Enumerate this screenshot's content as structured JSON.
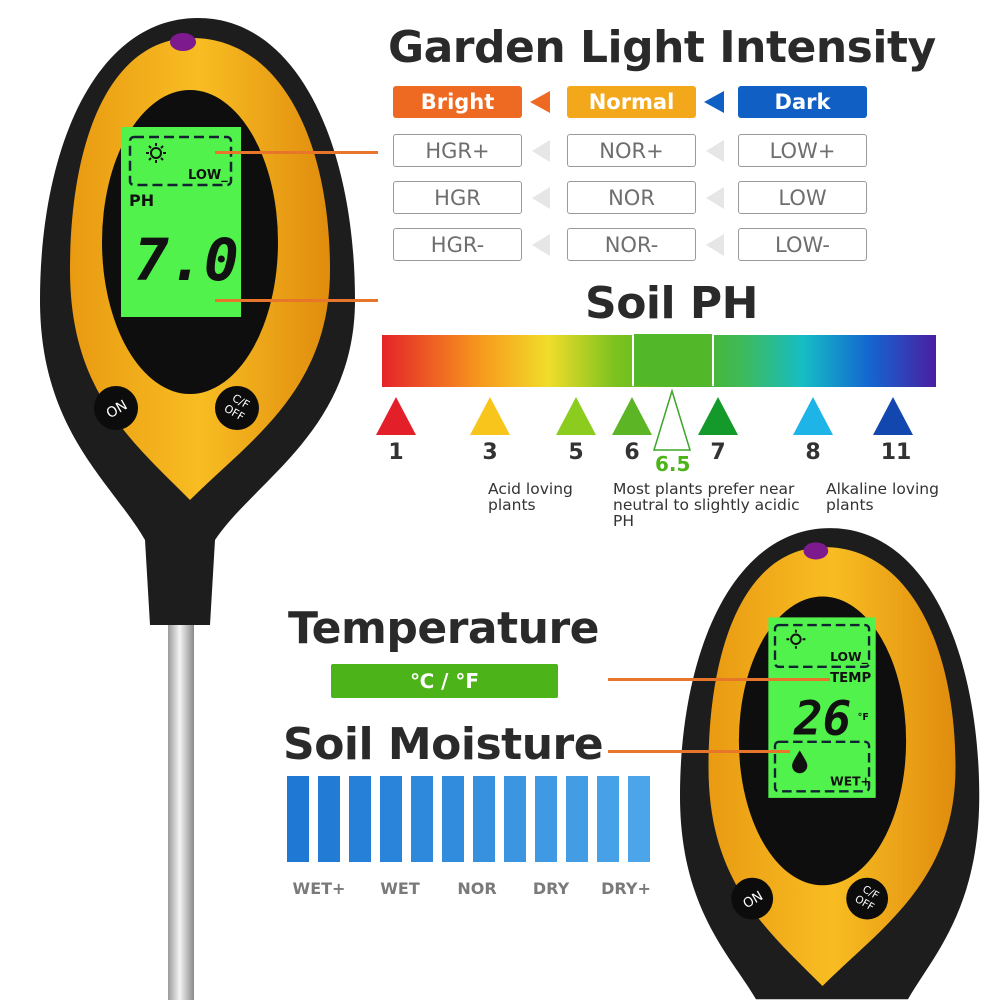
{
  "light": {
    "title": "Garden Light Intensity",
    "headers": [
      {
        "label": "Bright",
        "color": "#ee6a22"
      },
      {
        "label": "Normal",
        "color": "#f3a81c"
      },
      {
        "label": "Dark",
        "color": "#0f5fc4"
      }
    ],
    "rows": [
      [
        "HGR+",
        "NOR+",
        "LOW+"
      ],
      [
        "HGR",
        "NOR",
        "LOW"
      ],
      [
        "HGR-",
        "NOR-",
        "LOW-"
      ]
    ]
  },
  "ph": {
    "title": "Soil PH",
    "markers": [
      {
        "value": "1",
        "color": "#e3202a"
      },
      {
        "value": "3",
        "color": "#f8c51c"
      },
      {
        "value": "5",
        "color": "#8ccc1f"
      },
      {
        "value": "6",
        "color": "#5cb524"
      },
      {
        "value": "7",
        "color": "#149a2a"
      },
      {
        "value": "8",
        "color": "#1fb4e8"
      },
      {
        "value": "11",
        "color": "#1247b0"
      }
    ],
    "optimal": "6.5",
    "notes": {
      "acid": "Acid loving plants",
      "neutral": "Most plants prefer near neutral to slightly acidic PH",
      "alkaline": "Alkaline loving plants"
    }
  },
  "temperature": {
    "title": "Temperature",
    "units": "℃ / °F",
    "color": "#4cb319"
  },
  "moisture": {
    "title": "Soil Moisture",
    "bar_count": 12,
    "labels": [
      "WET+",
      "WET",
      "NOR",
      "DRY",
      "DRY+"
    ]
  },
  "device_left": {
    "light_level": "LOW_",
    "mode": "PH",
    "reading": "7.0",
    "on_label": "ON",
    "cf_label": "C/F",
    "off_label": "OFF"
  },
  "device_right": {
    "light_level": "LOW_",
    "mode": "TEMP",
    "reading": "26",
    "unit": "°F",
    "moisture_level": "WET+",
    "on_label": "ON",
    "cf_label": "C/F",
    "off_label": "OFF"
  }
}
